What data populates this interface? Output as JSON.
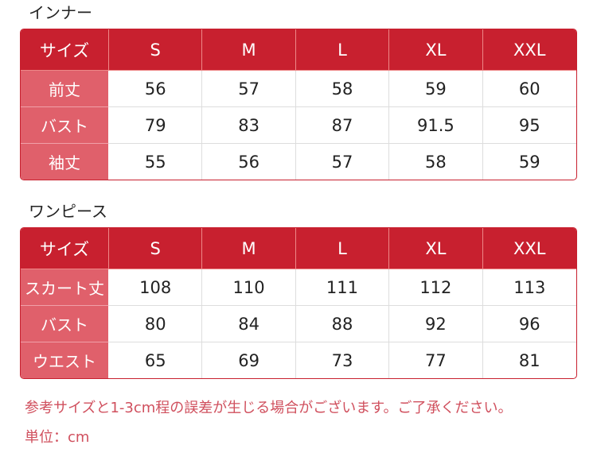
{
  "colors": {
    "header": "#c8202f",
    "label_col": "#e0606b",
    "note": "#d0505e"
  },
  "tables": [
    {
      "title": "インナー",
      "headers": [
        "サイズ",
        "S",
        "M",
        "L",
        "XL",
        "XXL"
      ],
      "rows": [
        [
          "前丈",
          "56",
          "57",
          "58",
          "59",
          "60"
        ],
        [
          "バスト",
          "79",
          "83",
          "87",
          "91.5",
          "95"
        ],
        [
          "袖丈",
          "55",
          "56",
          "57",
          "58",
          "59"
        ]
      ]
    },
    {
      "title": "ワンピース",
      "headers": [
        "サイズ",
        "S",
        "M",
        "L",
        "XL",
        "XXL"
      ],
      "rows": [
        [
          "スカート丈",
          "108",
          "110",
          "111",
          "112",
          "113"
        ],
        [
          "バスト",
          "80",
          "84",
          "88",
          "92",
          "96"
        ],
        [
          "ウエスト",
          "65",
          "69",
          "73",
          "77",
          "81"
        ]
      ]
    }
  ],
  "notes": [
    "参考サイズと1-3cm程の誤差が生じる場合がございます。ご了承ください。",
    "単位：cm"
  ]
}
